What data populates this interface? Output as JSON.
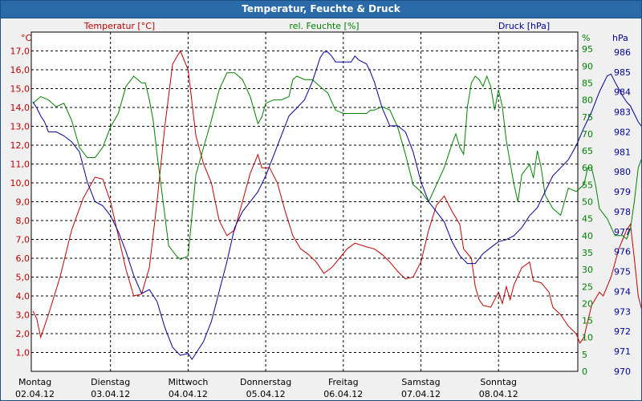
{
  "window": {
    "title": "Temperatur, Feuchte & Druck"
  },
  "colors": {
    "temperature": "#c00000",
    "humidity": "#008000",
    "pressure": "#000099",
    "grid": "#000000",
    "plot_bg": "#ffffff",
    "title_bg": "#2b6aa8"
  },
  "chart_data": {
    "type": "line",
    "title": "Temperatur, Feuchte & Druck",
    "x": {
      "days": [
        {
          "label": "Montag",
          "date": "02.04.12"
        },
        {
          "label": "Dienstag",
          "date": "03.04.12"
        },
        {
          "label": "Mittwoch",
          "date": "04.04.12"
        },
        {
          "label": "Donnerstag",
          "date": "05.04.12"
        },
        {
          "label": "Freitag",
          "date": "06.04.12"
        },
        {
          "label": "Samstag",
          "date": "07.04.12"
        },
        {
          "label": "Sonntag",
          "date": "08.04.12"
        }
      ],
      "range_days": [
        0,
        7.3
      ]
    },
    "axes": {
      "temperature": {
        "label": "Temperatur [°C]",
        "unit": "°C",
        "min": 0,
        "max": 18,
        "ticks": [
          "1,0",
          "2,0",
          "3,0",
          "4,0",
          "5,0",
          "6,0",
          "7,0",
          "8,0",
          "9,0",
          "10,0",
          "11,0",
          "12,0",
          "13,0",
          "14,0",
          "15,0",
          "16,0",
          "17,0"
        ]
      },
      "humidity": {
        "label": "rel. Feuchte [%]",
        "unit": "%",
        "min": 0,
        "max": 100,
        "ticks": [
          "0",
          "5",
          "10",
          "15",
          "20",
          "25",
          "30",
          "35",
          "40",
          "45",
          "50",
          "55",
          "60",
          "65",
          "70",
          "75",
          "80",
          "85",
          "90",
          "95"
        ]
      },
      "pressure": {
        "label": "Druck [hPa]",
        "unit": "hPa",
        "min": 970,
        "max": 987,
        "ticks": [
          "970",
          "971",
          "972",
          "973",
          "974",
          "975",
          "976",
          "977",
          "978",
          "979",
          "980",
          "981",
          "982",
          "983",
          "984",
          "985",
          "986"
        ]
      }
    },
    "series": [
      {
        "name": "Temperatur",
        "axis": "temperature",
        "color": "#c00000",
        "points": [
          [
            0,
            3.2
          ],
          [
            0.05,
            2.8
          ],
          [
            0.1,
            1.8
          ],
          [
            0.2,
            3.0
          ],
          [
            0.35,
            5.0
          ],
          [
            0.5,
            7.5
          ],
          [
            0.65,
            9.2
          ],
          [
            0.8,
            10.3
          ],
          [
            0.9,
            10.2
          ],
          [
            1.0,
            9.0
          ],
          [
            1.1,
            7.2
          ],
          [
            1.2,
            5.4
          ],
          [
            1.3,
            4.0
          ],
          [
            1.4,
            4.1
          ],
          [
            1.5,
            5.5
          ],
          [
            1.6,
            9.0
          ],
          [
            1.7,
            13.0
          ],
          [
            1.8,
            16.3
          ],
          [
            1.9,
            17.0
          ],
          [
            2.0,
            16.0
          ],
          [
            2.1,
            12.5
          ],
          [
            2.2,
            11.0
          ],
          [
            2.3,
            10.0
          ],
          [
            2.4,
            8.0
          ],
          [
            2.5,
            7.2
          ],
          [
            2.6,
            7.5
          ],
          [
            2.7,
            9.0
          ],
          [
            2.8,
            10.5
          ],
          [
            2.9,
            11.5
          ],
          [
            2.95,
            10.8
          ],
          [
            3.0,
            10.8
          ],
          [
            3.05,
            10.8
          ],
          [
            3.15,
            10.0
          ],
          [
            3.25,
            8.5
          ],
          [
            3.35,
            7.2
          ],
          [
            3.45,
            6.5
          ],
          [
            3.55,
            6.2
          ],
          [
            3.65,
            5.8
          ],
          [
            3.75,
            5.2
          ],
          [
            3.85,
            5.5
          ],
          [
            3.95,
            6.0
          ],
          [
            4.05,
            6.5
          ],
          [
            4.15,
            6.8
          ],
          [
            4.3,
            6.6
          ],
          [
            4.4,
            6.5
          ],
          [
            4.5,
            6.2
          ],
          [
            4.6,
            5.8
          ],
          [
            4.7,
            5.3
          ],
          [
            4.8,
            4.9
          ],
          [
            4.9,
            5.0
          ],
          [
            5.0,
            5.8
          ],
          [
            5.1,
            7.5
          ],
          [
            5.2,
            8.8
          ],
          [
            5.3,
            9.3
          ],
          [
            5.4,
            8.5
          ],
          [
            5.5,
            7.8
          ],
          [
            5.55,
            6.5
          ],
          [
            5.65,
            6.0
          ],
          [
            5.7,
            4.5
          ],
          [
            5.75,
            3.8
          ],
          [
            5.8,
            3.5
          ],
          [
            5.9,
            3.4
          ],
          [
            6.0,
            4.2
          ],
          [
            6.05,
            3.6
          ],
          [
            6.1,
            4.5
          ],
          [
            6.15,
            3.8
          ],
          [
            6.2,
            4.6
          ],
          [
            6.3,
            5.5
          ],
          [
            6.4,
            5.8
          ],
          [
            6.45,
            4.8
          ],
          [
            6.55,
            4.7
          ],
          [
            6.65,
            4.2
          ],
          [
            6.7,
            3.4
          ],
          [
            6.8,
            3.0
          ],
          [
            6.9,
            2.4
          ],
          [
            7.0,
            2.0
          ],
          [
            7.05,
            1.5
          ],
          [
            7.1,
            1.8
          ],
          [
            7.2,
            3.5
          ],
          [
            7.3,
            4.2
          ],
          [
            7.35,
            4.0
          ],
          [
            7.45,
            5.0
          ],
          [
            7.55,
            6.5
          ],
          [
            7.65,
            7.5
          ],
          [
            7.7,
            7.8
          ],
          [
            7.75,
            6.0
          ],
          [
            7.8,
            4.0
          ],
          [
            7.85,
            3.2
          ],
          [
            7.9,
            3.4
          ],
          [
            7.95,
            4.2
          ]
        ]
      },
      {
        "name": "rel. Feuchte",
        "axis": "humidity",
        "color": "#008000",
        "points": [
          [
            0,
            79
          ],
          [
            0.1,
            81
          ],
          [
            0.2,
            80
          ],
          [
            0.3,
            78
          ],
          [
            0.4,
            79
          ],
          [
            0.5,
            74
          ],
          [
            0.6,
            66
          ],
          [
            0.7,
            63
          ],
          [
            0.8,
            63
          ],
          [
            0.9,
            66
          ],
          [
            1.0,
            72
          ],
          [
            1.1,
            76
          ],
          [
            1.2,
            84
          ],
          [
            1.3,
            87
          ],
          [
            1.35,
            86
          ],
          [
            1.4,
            85
          ],
          [
            1.45,
            85
          ],
          [
            1.5,
            80
          ],
          [
            1.55,
            74
          ],
          [
            1.6,
            64
          ],
          [
            1.7,
            46
          ],
          [
            1.75,
            37
          ],
          [
            1.85,
            34
          ],
          [
            1.9,
            33
          ],
          [
            2.0,
            34
          ],
          [
            2.1,
            58
          ],
          [
            2.2,
            66
          ],
          [
            2.3,
            74
          ],
          [
            2.4,
            83
          ],
          [
            2.5,
            88
          ],
          [
            2.6,
            88
          ],
          [
            2.7,
            86
          ],
          [
            2.8,
            81
          ],
          [
            2.85,
            77
          ],
          [
            2.9,
            73
          ],
          [
            2.95,
            75
          ],
          [
            3.0,
            79
          ],
          [
            3.1,
            80
          ],
          [
            3.2,
            80
          ],
          [
            3.3,
            81
          ],
          [
            3.35,
            86
          ],
          [
            3.4,
            87
          ],
          [
            3.5,
            86
          ],
          [
            3.6,
            86
          ],
          [
            3.7,
            84
          ],
          [
            3.8,
            82
          ],
          [
            3.9,
            77
          ],
          [
            4.0,
            76
          ],
          [
            4.1,
            76
          ],
          [
            4.2,
            76
          ],
          [
            4.3,
            76
          ],
          [
            4.35,
            77
          ],
          [
            4.4,
            77
          ],
          [
            4.5,
            78
          ],
          [
            4.6,
            77
          ],
          [
            4.7,
            72
          ],
          [
            4.8,
            64
          ],
          [
            4.9,
            55
          ],
          [
            5.0,
            53
          ],
          [
            5.1,
            50
          ],
          [
            5.2,
            55
          ],
          [
            5.3,
            60
          ],
          [
            5.4,
            67
          ],
          [
            5.45,
            70
          ],
          [
            5.5,
            66
          ],
          [
            5.55,
            64
          ],
          [
            5.6,
            78
          ],
          [
            5.65,
            85
          ],
          [
            5.7,
            87
          ],
          [
            5.75,
            86
          ],
          [
            5.8,
            84
          ],
          [
            5.85,
            87
          ],
          [
            5.9,
            84
          ],
          [
            5.95,
            77
          ],
          [
            6.0,
            83
          ],
          [
            6.05,
            78
          ],
          [
            6.1,
            68
          ],
          [
            6.2,
            55
          ],
          [
            6.25,
            50
          ],
          [
            6.3,
            58
          ],
          [
            6.4,
            61
          ],
          [
            6.45,
            57
          ],
          [
            6.5,
            65
          ],
          [
            6.55,
            60
          ],
          [
            6.6,
            52
          ],
          [
            6.7,
            48
          ],
          [
            6.8,
            46
          ],
          [
            6.9,
            54
          ],
          [
            7.0,
            53
          ],
          [
            7.1,
            55
          ],
          [
            7.15,
            60
          ],
          [
            7.2,
            60
          ],
          [
            7.25,
            55
          ],
          [
            7.3,
            48
          ],
          [
            7.4,
            45
          ],
          [
            7.5,
            40
          ],
          [
            7.6,
            40
          ],
          [
            7.65,
            39
          ],
          [
            7.7,
            42
          ],
          [
            7.75,
            50
          ],
          [
            7.8,
            60
          ],
          [
            7.85,
            63
          ],
          [
            7.9,
            63
          ],
          [
            7.95,
            62
          ]
        ]
      },
      {
        "name": "Druck",
        "axis": "pressure",
        "color": "#000099",
        "points": [
          [
            0,
            983.5
          ],
          [
            0.05,
            983.2
          ],
          [
            0.1,
            982.8
          ],
          [
            0.15,
            982.5
          ],
          [
            0.2,
            982.0
          ],
          [
            0.3,
            982.0
          ],
          [
            0.4,
            981.8
          ],
          [
            0.5,
            981.5
          ],
          [
            0.6,
            981.0
          ],
          [
            0.7,
            979.5
          ],
          [
            0.8,
            978.5
          ],
          [
            0.9,
            978.3
          ],
          [
            1.0,
            977.8
          ],
          [
            1.1,
            977.0
          ],
          [
            1.2,
            976.0
          ],
          [
            1.3,
            974.8
          ],
          [
            1.4,
            973.9
          ],
          [
            1.5,
            974.1
          ],
          [
            1.6,
            973.5
          ],
          [
            1.7,
            972.2
          ],
          [
            1.8,
            971.2
          ],
          [
            1.9,
            970.8
          ],
          [
            2.0,
            970.9
          ],
          [
            2.05,
            970.6
          ],
          [
            2.1,
            970.9
          ],
          [
            2.2,
            971.5
          ],
          [
            2.3,
            972.5
          ],
          [
            2.4,
            974.0
          ],
          [
            2.5,
            975.5
          ],
          [
            2.6,
            977.2
          ],
          [
            2.7,
            978.0
          ],
          [
            2.8,
            978.5
          ],
          [
            2.9,
            979.0
          ],
          [
            3.0,
            979.8
          ],
          [
            3.1,
            980.8
          ],
          [
            3.2,
            981.8
          ],
          [
            3.3,
            982.8
          ],
          [
            3.4,
            983.2
          ],
          [
            3.5,
            983.6
          ],
          [
            3.6,
            984.5
          ],
          [
            3.7,
            985.7
          ],
          [
            3.75,
            986.0
          ],
          [
            3.8,
            986.0
          ],
          [
            3.85,
            985.8
          ],
          [
            3.9,
            985.5
          ],
          [
            4.0,
            985.5
          ],
          [
            4.1,
            985.5
          ],
          [
            4.15,
            985.8
          ],
          [
            4.2,
            985.6
          ],
          [
            4.3,
            985.4
          ],
          [
            4.35,
            985.0
          ],
          [
            4.4,
            984.5
          ],
          [
            4.5,
            983.2
          ],
          [
            4.6,
            982.3
          ],
          [
            4.7,
            982.3
          ],
          [
            4.8,
            982.0
          ],
          [
            4.9,
            981.0
          ],
          [
            5.0,
            979.5
          ],
          [
            5.1,
            978.5
          ],
          [
            5.2,
            978.0
          ],
          [
            5.3,
            977.5
          ],
          [
            5.4,
            976.5
          ],
          [
            5.5,
            975.8
          ],
          [
            5.6,
            975.4
          ],
          [
            5.7,
            975.4
          ],
          [
            5.8,
            975.9
          ],
          [
            5.9,
            976.2
          ],
          [
            6.0,
            976.5
          ],
          [
            6.1,
            976.6
          ],
          [
            6.2,
            976.8
          ],
          [
            6.3,
            977.2
          ],
          [
            6.4,
            977.8
          ],
          [
            6.5,
            978.2
          ],
          [
            6.6,
            979.0
          ],
          [
            6.7,
            979.8
          ],
          [
            6.8,
            980.2
          ],
          [
            6.9,
            980.6
          ],
          [
            7.0,
            981.3
          ],
          [
            7.1,
            982.2
          ],
          [
            7.2,
            983.0
          ],
          [
            7.3,
            984.0
          ],
          [
            7.4,
            984.8
          ],
          [
            7.45,
            984.9
          ],
          [
            7.5,
            984.5
          ],
          [
            7.6,
            983.8
          ],
          [
            7.65,
            983.5
          ],
          [
            7.7,
            983.3
          ],
          [
            7.8,
            982.5
          ],
          [
            7.9,
            982.0
          ],
          [
            7.95,
            981.2
          ]
        ]
      }
    ]
  }
}
